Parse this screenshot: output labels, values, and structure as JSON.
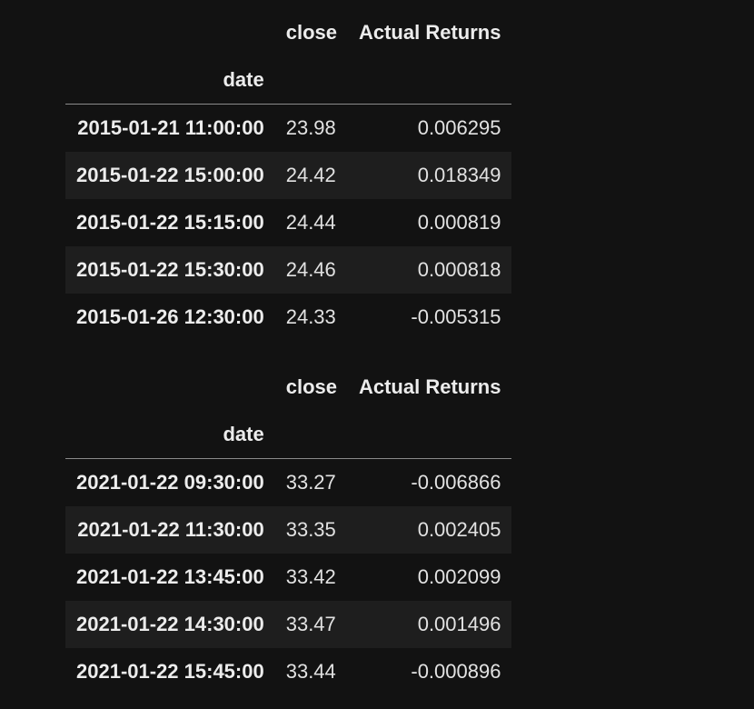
{
  "tables": [
    {
      "columns": [
        "close",
        "Actual Returns"
      ],
      "index_name": "date",
      "rows": [
        {
          "date": "2015-01-21 11:00:00",
          "close": "23.98",
          "returns": "0.006295"
        },
        {
          "date": "2015-01-22 15:00:00",
          "close": "24.42",
          "returns": "0.018349"
        },
        {
          "date": "2015-01-22 15:15:00",
          "close": "24.44",
          "returns": "0.000819"
        },
        {
          "date": "2015-01-22 15:30:00",
          "close": "24.46",
          "returns": "0.000818"
        },
        {
          "date": "2015-01-26 12:30:00",
          "close": "24.33",
          "returns": "-0.005315"
        }
      ]
    },
    {
      "columns": [
        "close",
        "Actual Returns"
      ],
      "index_name": "date",
      "rows": [
        {
          "date": "2021-01-22 09:30:00",
          "close": "33.27",
          "returns": "-0.006866"
        },
        {
          "date": "2021-01-22 11:30:00",
          "close": "33.35",
          "returns": "0.002405"
        },
        {
          "date": "2021-01-22 13:45:00",
          "close": "33.42",
          "returns": "0.002099"
        },
        {
          "date": "2021-01-22 14:30:00",
          "close": "33.47",
          "returns": "0.001496"
        },
        {
          "date": "2021-01-22 15:45:00",
          "close": "33.44",
          "returns": "-0.000896"
        }
      ]
    }
  ]
}
